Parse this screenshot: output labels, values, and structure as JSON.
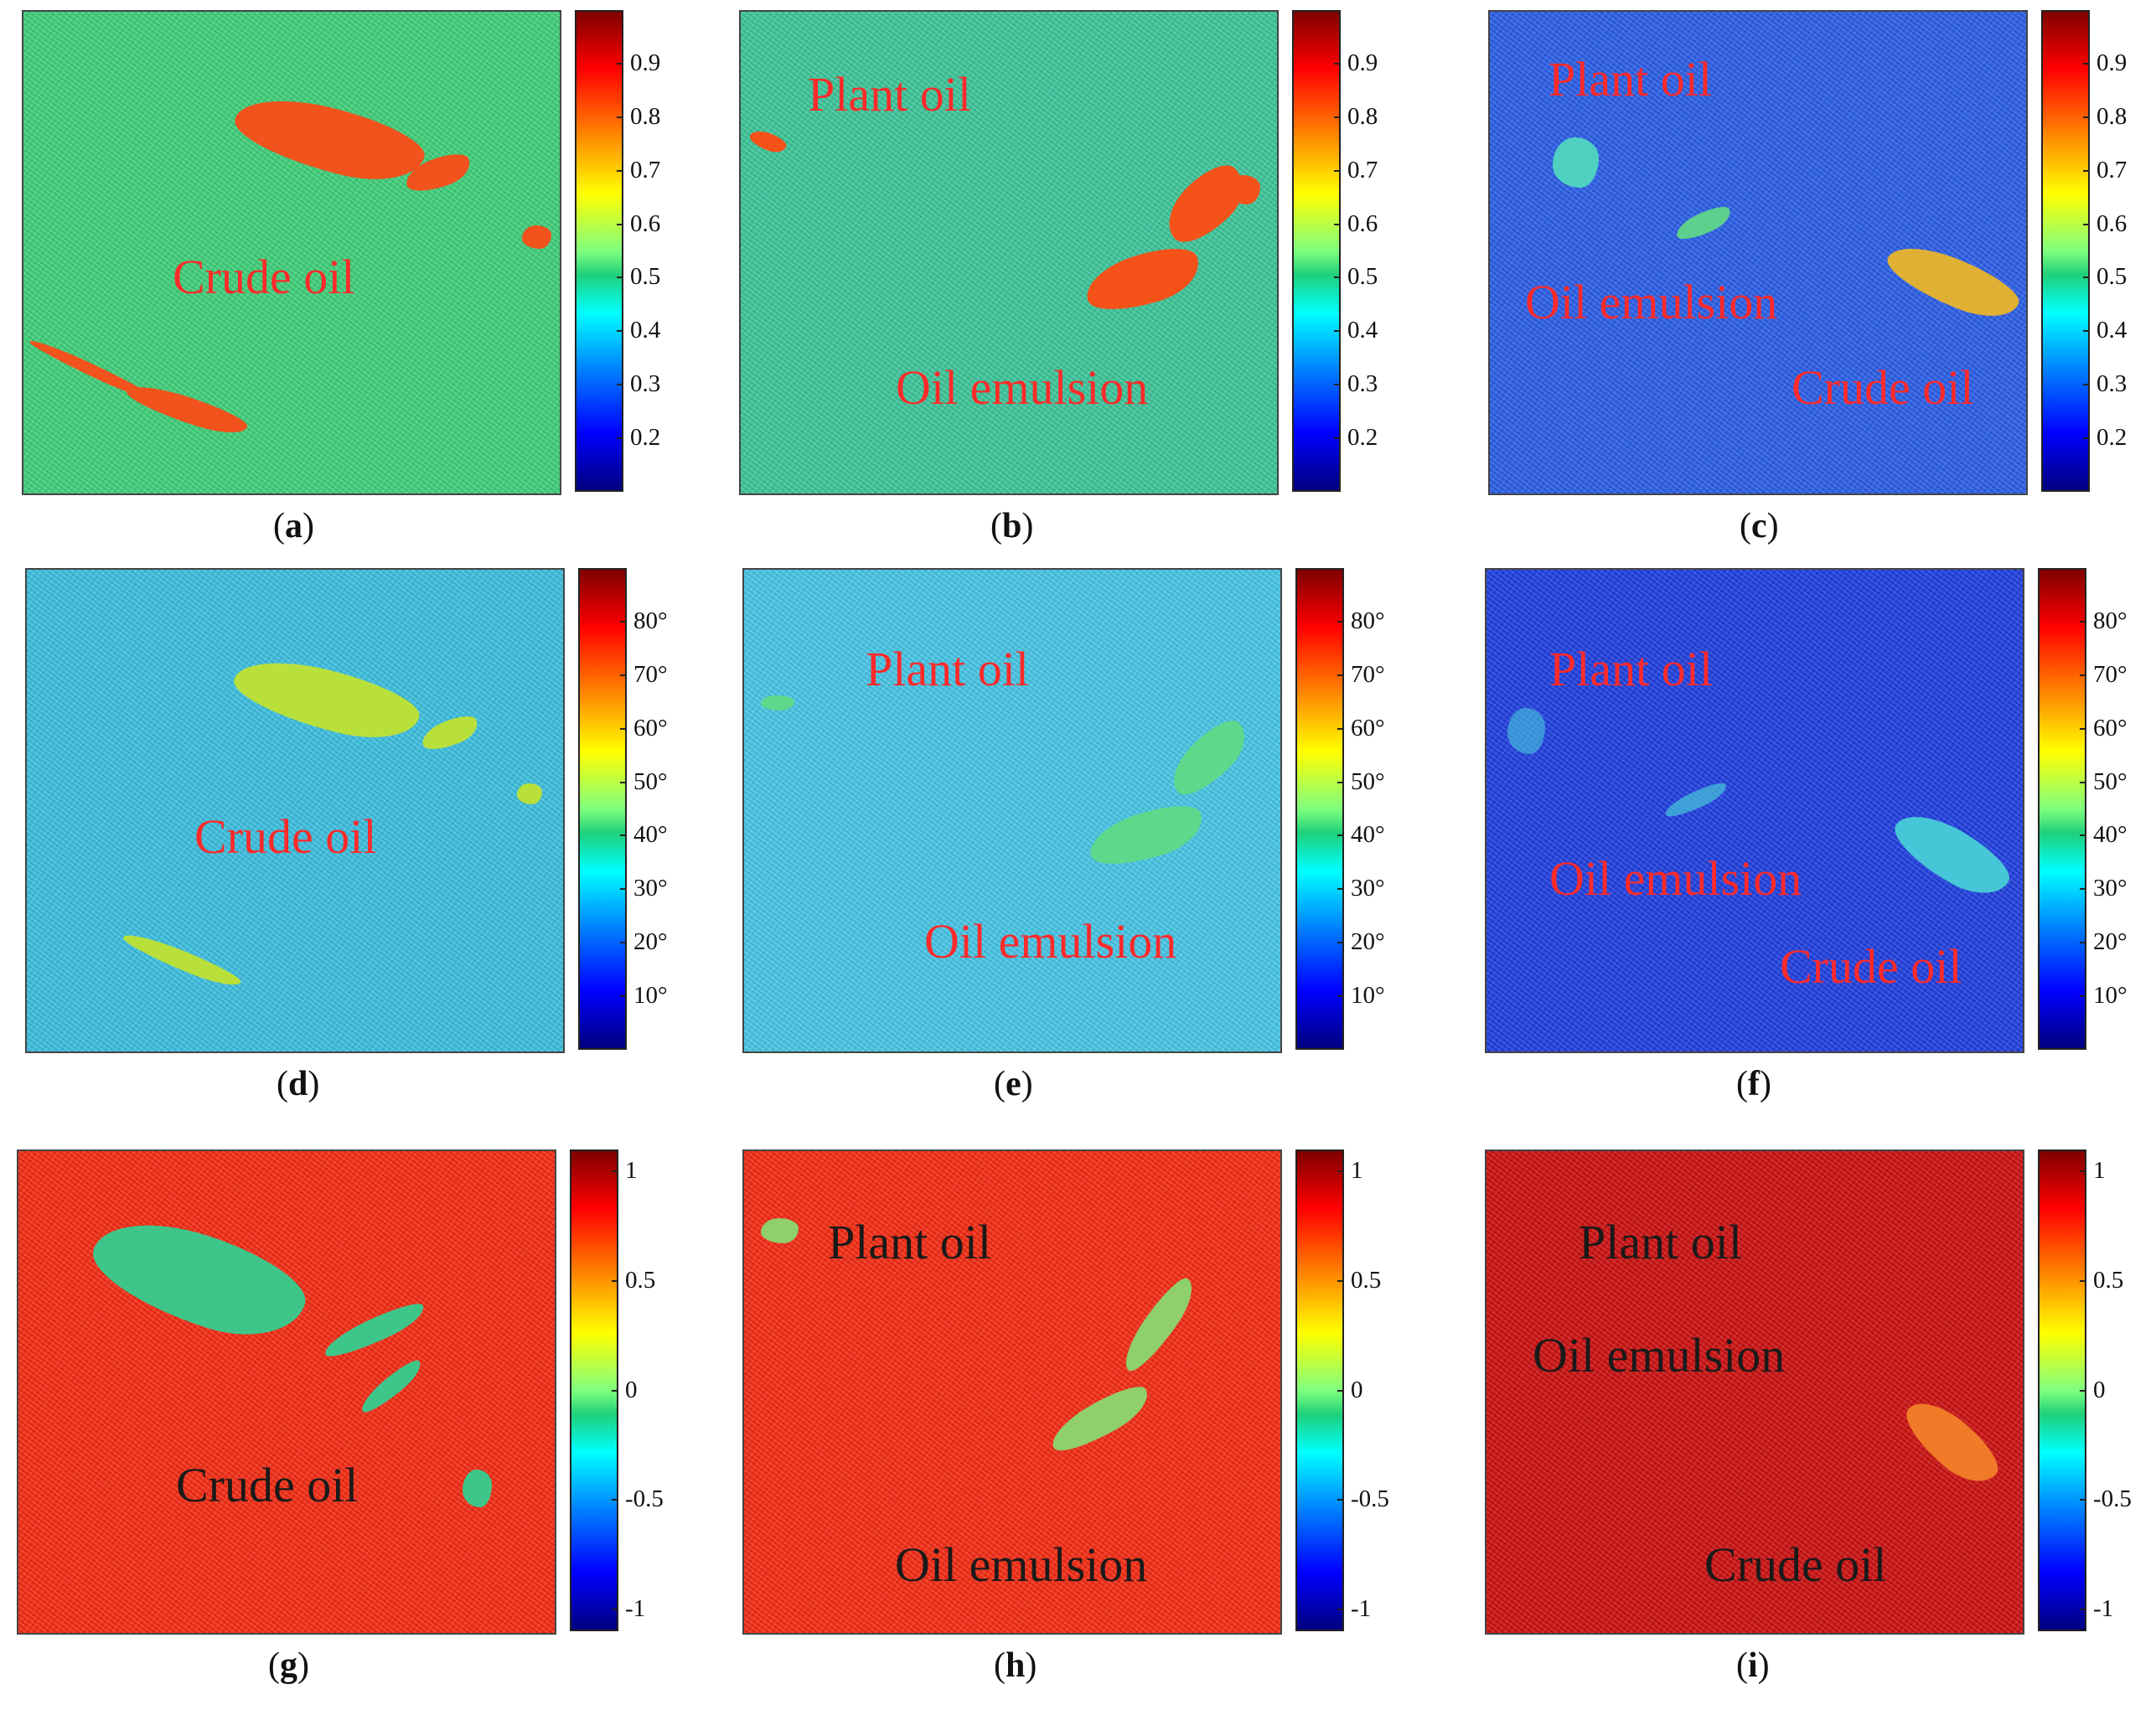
{
  "chart_data": {
    "type": "heatmap",
    "layout": "3x3 grid of image panels with colorbars",
    "rows": [
      {
        "colorbar_ticks": [
          "0.2",
          "0.3",
          "0.4",
          "0.5",
          "0.6",
          "0.7",
          "0.8",
          "0.9"
        ],
        "colorbar_range": [
          0.1,
          1.0
        ]
      },
      {
        "colorbar_ticks": [
          "10°",
          "20°",
          "30°",
          "40°",
          "50°",
          "60°",
          "70°",
          "80°"
        ],
        "colorbar_range": [
          0,
          90
        ]
      },
      {
        "colorbar_ticks": [
          "-1",
          "-0.5",
          "0",
          "0.5",
          "1"
        ],
        "colorbar_range": [
          -1.1,
          1.1
        ]
      }
    ],
    "panels": [
      {
        "id": "a",
        "caption": "a",
        "background": "#3fd07a",
        "slick_color": "#f2521c",
        "labels": [
          {
            "text": "Crude oil",
            "color": "#ff2a2a"
          }
        ]
      },
      {
        "id": "b",
        "caption": "b",
        "background": "#3cc69a",
        "slick_color": "#f5521a",
        "labels": [
          {
            "text": "Plant oil",
            "color": "#ff2a2a"
          },
          {
            "text": "Oil emulsion",
            "color": "#ff2a2a"
          }
        ]
      },
      {
        "id": "c",
        "caption": "c",
        "background": "#2a5ee8",
        "slick_color": "#e0b035",
        "labels": [
          {
            "text": "Plant oil",
            "color": "#ff2a2a"
          },
          {
            "text": "Oil emulsion",
            "color": "#ff2a2a"
          },
          {
            "text": "Crude oil",
            "color": "#ff2a2a"
          }
        ]
      },
      {
        "id": "d",
        "caption": "d",
        "background": "#3cbfe0",
        "slick_color": "#b9e03a",
        "labels": [
          {
            "text": "Crude oil",
            "color": "#ff2a2a"
          }
        ]
      },
      {
        "id": "e",
        "caption": "e",
        "background": "#46c6e6",
        "slick_color": "#5ed88a",
        "labels": [
          {
            "text": "Plant oil",
            "color": "#ff2a2a"
          },
          {
            "text": "Oil emulsion",
            "color": "#ff2a2a"
          }
        ]
      },
      {
        "id": "f",
        "caption": "f",
        "background": "#1f3fe0",
        "slick_color": "#47c6d8",
        "labels": [
          {
            "text": "Plant oil",
            "color": "#ff2a2a"
          },
          {
            "text": "Oil emulsion",
            "color": "#ff2a2a"
          },
          {
            "text": "Crude oil",
            "color": "#ff2a2a"
          }
        ]
      },
      {
        "id": "g",
        "caption": "g",
        "background": "#f42a12",
        "slick_color": "#3ec68a",
        "labels": [
          {
            "text": "Crude oil",
            "color": "#1a1a1a"
          }
        ]
      },
      {
        "id": "h",
        "caption": "h",
        "background": "#f42a12",
        "slick_color": "#8fd06a",
        "labels": [
          {
            "text": "Plant oil",
            "color": "#1a1a1a"
          },
          {
            "text": "Oil emulsion",
            "color": "#1a1a1a"
          }
        ]
      },
      {
        "id": "i",
        "caption": "i",
        "background": "#cc1010",
        "slick_color": "#f07a28",
        "labels": [
          {
            "text": "Plant oil",
            "color": "#1a1a1a"
          },
          {
            "text": "Oil emulsion",
            "color": "#1a1a1a"
          },
          {
            "text": "Crude oil",
            "color": "#1a1a1a"
          }
        ]
      }
    ]
  }
}
